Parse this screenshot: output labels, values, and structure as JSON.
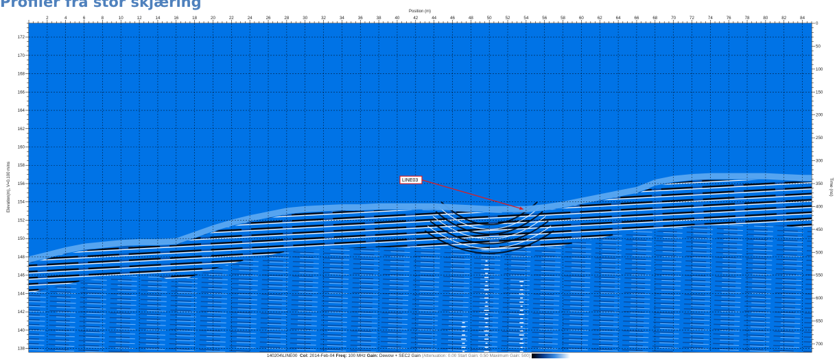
{
  "page": {
    "title": "Profiler fra stor skjæring"
  },
  "chart_data": {
    "type": "heatmap",
    "title": "",
    "xlabel": "Position (m)",
    "ylabel_left": "Elevation(m), V=0.100 m/ns",
    "ylabel_right": "Time (ns)",
    "x_ticks": [
      2,
      4,
      6,
      8,
      10,
      12,
      14,
      16,
      18,
      20,
      22,
      24,
      26,
      28,
      30,
      32,
      34,
      36,
      38,
      40,
      42,
      44,
      46,
      48,
      50,
      52,
      54,
      56,
      58,
      60,
      62,
      64,
      66,
      68,
      70,
      72,
      74,
      76,
      78,
      80,
      82,
      84
    ],
    "xlim": [
      0,
      85
    ],
    "elevation_ticks": [
      138,
      140,
      142,
      144,
      146,
      148,
      150,
      152,
      154,
      156,
      158,
      160,
      162,
      164,
      166,
      168,
      170,
      172
    ],
    "elevation_lim": [
      137.6,
      173.5
    ],
    "time_ticks": [
      0,
      50,
      100,
      150,
      200,
      250,
      300,
      350,
      400,
      450,
      500,
      550,
      600,
      650,
      700
    ],
    "time_lim": [
      0,
      718
    ],
    "grid": true,
    "ground_surface": {
      "x": [
        0,
        2,
        4,
        6,
        8,
        10,
        12,
        14,
        16,
        18,
        20,
        22,
        24,
        26,
        28,
        30,
        32,
        34,
        36,
        38,
        40,
        42,
        44,
        46,
        48,
        50,
        52,
        54,
        56,
        58,
        60,
        62,
        64,
        66,
        68,
        70,
        72,
        74,
        76,
        78,
        80,
        82,
        84,
        85
      ],
      "elevation": [
        147.6,
        148.1,
        148.6,
        149.0,
        149.2,
        149.4,
        149.5,
        149.5,
        149.6,
        150.3,
        151.0,
        151.6,
        152.1,
        152.5,
        152.9,
        153.1,
        153.2,
        153.3,
        153.3,
        153.4,
        153.4,
        153.4,
        153.4,
        153.3,
        153.2,
        153.1,
        153.1,
        153.1,
        153.3,
        153.6,
        154.0,
        154.4,
        154.8,
        155.2,
        156.0,
        156.4,
        156.6,
        156.7,
        156.7,
        156.7,
        156.7,
        156.6,
        156.5,
        156.5
      ]
    },
    "annotation": {
      "label": "LINE03",
      "label_x": 40.3,
      "label_elevation": 156.4,
      "target_x": 53.7,
      "target_elevation": 153.2
    },
    "footer": {
      "file_label": "140204\\LINE00",
      "col_label": "Col:",
      "col_value": "2014-Feb-04",
      "freq_label": "Freq:",
      "freq_value": "100 MHz",
      "gain_label": "Gain:",
      "gain_value": "Dewow + SEC2 Gain",
      "gain_params": "(Attenuation: 0.00 Start Gain: 0.50 Maximum Gain: 500)"
    },
    "colors": {
      "background": "#0073e6",
      "light_band": "#5aa6f0",
      "reflector": "#000000",
      "reflector_highlight": "#ffffff",
      "annotation": "#d81f26",
      "grid": "#000000"
    }
  }
}
